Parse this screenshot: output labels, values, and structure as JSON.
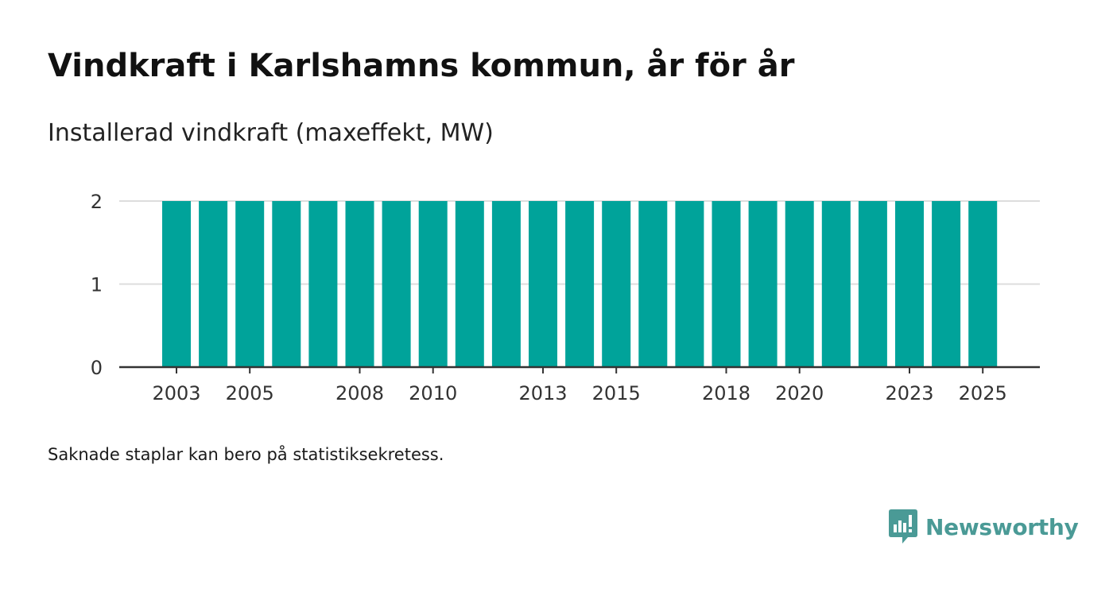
{
  "header": {
    "title": "Vindkraft i Karlshamns kommun, år för år",
    "subtitle": "Installerad vindkraft (maxeffekt, MW)"
  },
  "footnote": "Saknade staplar kan bero på statistiksekretess.",
  "brand": {
    "name": "Newsworthy",
    "color": "#4a9a96"
  },
  "colors": {
    "bar": "#00a39a",
    "grid": "#dddddd",
    "axis": "#333333"
  },
  "chart_data": {
    "type": "bar",
    "categories": [
      "2003",
      "2004",
      "2005",
      "2006",
      "2007",
      "2008",
      "2009",
      "2010",
      "2011",
      "2012",
      "2013",
      "2014",
      "2015",
      "2016",
      "2017",
      "2018",
      "2019",
      "2020",
      "2021",
      "2022",
      "2023",
      "2024",
      "2025"
    ],
    "values": [
      2,
      2,
      2,
      2,
      2,
      2,
      2,
      2,
      2,
      2,
      2,
      2,
      2,
      2,
      2,
      2,
      2,
      2,
      2,
      2,
      2,
      2,
      2
    ],
    "xtick_labels": [
      "2003",
      "2005",
      "2008",
      "2010",
      "2013",
      "2015",
      "2018",
      "2020",
      "2023",
      "2025"
    ],
    "yticks": [
      0,
      1,
      2
    ],
    "ylim": [
      0,
      2
    ],
    "grid": true,
    "title": "Vindkraft i Karlshamns kommun, år för år",
    "xlabel": "",
    "ylabel": "Installerad vindkraft (maxeffekt, MW)"
  }
}
